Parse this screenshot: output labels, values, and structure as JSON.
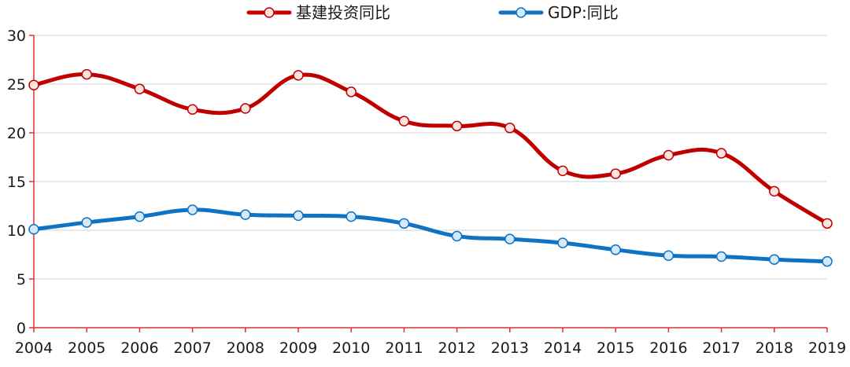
{
  "chart_data": {
    "type": "line",
    "title": "",
    "xlabel": "",
    "ylabel": "",
    "x": [
      "2004",
      "2005",
      "2006",
      "2007",
      "2008",
      "2009",
      "2010",
      "2011",
      "2012",
      "2013",
      "2014",
      "2015",
      "2016",
      "2017",
      "2018",
      "2019"
    ],
    "ylim": [
      0,
      30
    ],
    "yticks": [
      0,
      5,
      10,
      15,
      20,
      25,
      30
    ],
    "grid": true,
    "legend_position": "top-center",
    "axis_color": "#e03030",
    "grid_color": "#d9d9d9",
    "series": [
      {
        "name": "基建投资同比",
        "color": "#c00000",
        "marker_fill": "#fbe3e0",
        "values": [
          24.9,
          26.0,
          24.5,
          22.4,
          22.5,
          25.9,
          24.2,
          21.2,
          20.7,
          20.5,
          16.1,
          15.8,
          17.7,
          17.9,
          14.0,
          10.7
        ]
      },
      {
        "name": "GDP:同比",
        "color": "#0f72c2",
        "marker_fill": "#d6e9f8",
        "values": [
          10.1,
          10.8,
          11.4,
          12.1,
          11.6,
          11.5,
          11.4,
          10.7,
          9.4,
          9.1,
          8.7,
          8.0,
          7.4,
          7.3,
          7.0,
          6.8
        ]
      }
    ]
  }
}
